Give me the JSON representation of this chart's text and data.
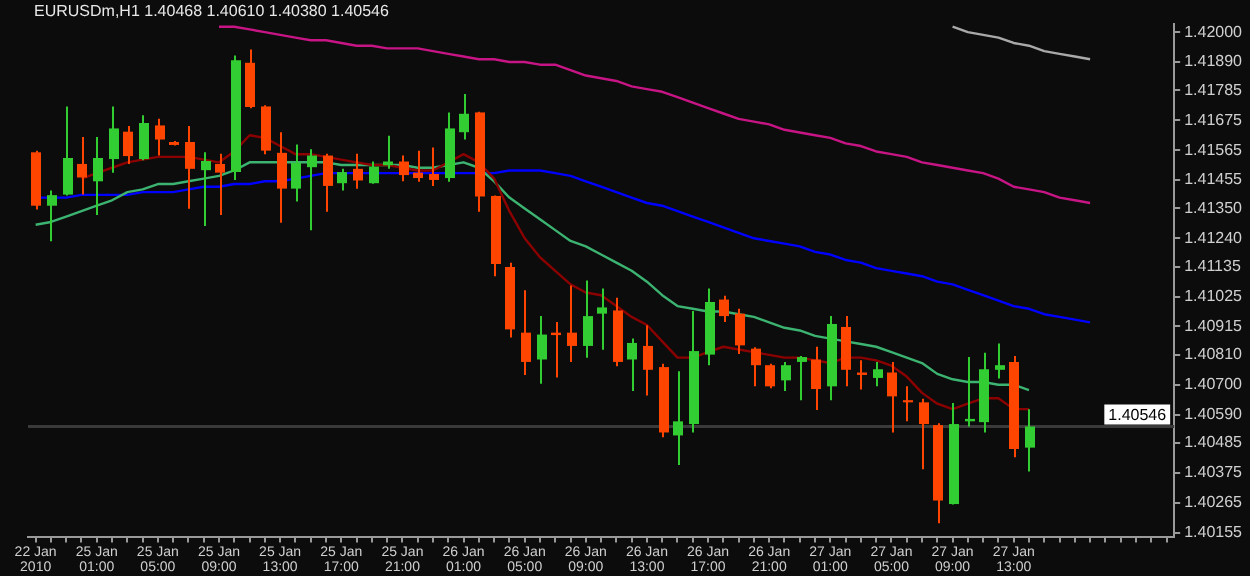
{
  "chart_data": {
    "type": "candlestick",
    "title": "EURUSDm,H1 1.40468 1.40610 1.40380 1.40546",
    "categories": [
      "22 Jan 2010",
      null,
      null,
      null,
      "25 Jan 01:00",
      null,
      null,
      null,
      "25 Jan 05:00",
      null,
      null,
      null,
      "25 Jan 09:00",
      null,
      null,
      null,
      "25 Jan 13:00",
      null,
      null,
      null,
      "25 Jan 17:00",
      null,
      null,
      null,
      "25 Jan 21:00",
      null,
      null,
      null,
      "26 Jan 01:00",
      null,
      null,
      null,
      "26 Jan 05:00",
      null,
      null,
      null,
      "26 Jan 09:00",
      null,
      null,
      null,
      "26 Jan 13:00",
      null,
      null,
      null,
      "26 Jan 17:00",
      null,
      null,
      null,
      "26 Jan 21:00",
      null,
      null,
      null,
      "27 Jan 01:00",
      null,
      null,
      null,
      "27 Jan 05:00",
      null,
      null,
      null,
      "27 Jan 09:00",
      null,
      null,
      null,
      "27 Jan 13:00",
      null,
      null,
      null,
      null,
      null,
      null,
      null,
      null,
      null,
      null
    ],
    "ohlc": [
      [
        1.41557,
        1.41563,
        1.41346,
        1.4136
      ],
      [
        1.4136,
        1.41416,
        1.41229,
        1.41399
      ],
      [
        1.41401,
        1.41726,
        1.41398,
        1.41536
      ],
      [
        1.41514,
        1.41613,
        1.41401,
        1.41464
      ],
      [
        1.4145,
        1.41613,
        1.41326,
        1.41536
      ],
      [
        1.41532,
        1.41726,
        1.41482,
        1.41645
      ],
      [
        1.41633,
        1.41654,
        1.41514,
        1.41543
      ],
      [
        1.41532,
        1.41694,
        1.41528,
        1.41665
      ],
      [
        1.41656,
        1.41681,
        1.41545,
        1.41604
      ],
      [
        1.41595,
        1.41599,
        1.41582,
        1.41584
      ],
      [
        1.41595,
        1.41654,
        1.41349,
        1.41496
      ],
      [
        1.41491,
        1.41557,
        1.41285,
        1.41525
      ],
      [
        1.41514,
        1.41552,
        1.41326,
        1.41482
      ],
      [
        1.41484,
        1.41914,
        1.41455,
        1.41896
      ],
      [
        1.41887,
        1.41936,
        1.41719,
        1.41724
      ],
      [
        1.41726,
        1.4173,
        1.4155,
        1.41563
      ],
      [
        1.41555,
        1.41631,
        1.41297,
        1.41423
      ],
      [
        1.41423,
        1.41586,
        1.41376,
        1.41518
      ],
      [
        1.41502,
        1.41568,
        1.4127,
        1.41545
      ],
      [
        1.41545,
        1.41552,
        1.41338,
        1.41433
      ],
      [
        1.41443,
        1.41496,
        1.41416,
        1.41484
      ],
      [
        1.41496,
        1.41552,
        1.41423,
        1.41453
      ],
      [
        1.41443,
        1.41523,
        1.41441,
        1.41504
      ],
      [
        1.41509,
        1.41618,
        1.41496,
        1.41523
      ],
      [
        1.41523,
        1.41545,
        1.4145,
        1.41473
      ],
      [
        1.41482,
        1.41563,
        1.41448,
        1.41462
      ],
      [
        1.41477,
        1.41575,
        1.41433,
        1.41455
      ],
      [
        1.41462,
        1.41704,
        1.41448,
        1.41645
      ],
      [
        1.41631,
        1.41772,
        1.41604,
        1.41699
      ],
      [
        1.41704,
        1.41706,
        1.41338,
        1.41394
      ],
      [
        1.41396,
        1.41398,
        1.411,
        1.41145
      ],
      [
        1.41134,
        1.4115,
        1.40874,
        1.40904
      ],
      [
        1.40892,
        1.41048,
        1.40736,
        1.40784
      ],
      [
        1.40793,
        1.40953,
        1.40704,
        1.40885
      ],
      [
        1.40892,
        1.40931,
        1.40727,
        1.40883
      ],
      [
        1.40892,
        1.41066,
        1.40784,
        1.40843
      ],
      [
        1.40843,
        1.41084,
        1.40799,
        1.40953
      ],
      [
        1.40962,
        1.41055,
        1.40829,
        1.40985
      ],
      [
        1.40974,
        1.41021,
        1.40768,
        1.40784
      ],
      [
        1.40793,
        1.4087,
        1.40677,
        1.40854
      ],
      [
        1.40843,
        1.40919,
        1.4066,
        1.40755
      ],
      [
        1.40765,
        1.40777,
        1.40506,
        1.40524
      ],
      [
        1.40513,
        1.4075,
        1.40404,
        1.40565
      ],
      [
        1.40555,
        1.40972,
        1.40524,
        1.40824
      ],
      [
        1.40811,
        1.41055,
        1.40772,
        1.41005
      ],
      [
        1.41014,
        1.41028,
        1.40931,
        1.40953
      ],
      [
        1.40962,
        1.4098,
        1.40813,
        1.40845
      ],
      [
        1.40833,
        1.40838,
        1.40694,
        1.40772
      ],
      [
        1.40772,
        1.40777,
        1.40687,
        1.40694
      ],
      [
        1.40716,
        1.40784,
        1.40677,
        1.40772
      ],
      [
        1.40784,
        1.40806,
        1.40643,
        1.40802
      ],
      [
        1.40793,
        1.4084,
        1.40607,
        1.40684
      ],
      [
        1.40694,
        1.40953,
        1.40643,
        1.40924
      ],
      [
        1.40913,
        1.40953,
        1.40694,
        1.40755
      ],
      [
        1.40745,
        1.4079,
        1.40682,
        1.40736
      ],
      [
        1.40725,
        1.40784,
        1.40694,
        1.40757
      ],
      [
        1.40745,
        1.40784,
        1.40524,
        1.40657
      ],
      [
        1.40643,
        1.40694,
        1.40565,
        1.40635
      ],
      [
        1.40635,
        1.40648,
        1.40388,
        1.40555
      ],
      [
        1.40551,
        1.40558,
        1.40189,
        1.40273
      ],
      [
        1.4026,
        1.40633,
        1.40258,
        1.40555
      ],
      [
        1.40565,
        1.40802,
        1.40546,
        1.40574
      ],
      [
        1.40562,
        1.40818,
        1.40524,
        1.40757
      ],
      [
        1.40755,
        1.40852,
        1.40723,
        1.40772
      ],
      [
        1.40784,
        1.40806,
        1.40433,
        1.40463
      ],
      [
        1.40468,
        1.4061,
        1.4038,
        1.40546
      ],
      null,
      null,
      null,
      null,
      null,
      null,
      null,
      null,
      null
    ],
    "colors": [
      "#ff4500",
      "#32cd32",
      "#32cd32",
      "#ff4500",
      "#32cd32",
      "#32cd32",
      "#ff4500",
      "#32cd32",
      "#ff4500",
      "#ff4500",
      "#ff4500",
      "#32cd32",
      "#ff4500",
      "#32cd32",
      "#ff4500",
      "#ff4500",
      "#ff4500",
      "#32cd32",
      "#32cd32",
      "#ff4500",
      "#32cd32",
      "#ff4500",
      "#32cd32",
      "#32cd32",
      "#ff4500",
      "#ff4500",
      "#ff4500",
      "#32cd32",
      "#32cd32",
      "#ff4500",
      "#ff4500",
      "#ff4500",
      "#ff4500",
      "#32cd32",
      "#ff4500",
      "#ff4500",
      "#32cd32",
      "#32cd32",
      "#ff4500",
      "#32cd32",
      "#ff4500",
      "#ff4500",
      "#32cd32",
      "#32cd32",
      "#32cd32",
      "#ff4500",
      "#ff4500",
      "#ff4500",
      "#ff4500",
      "#32cd32",
      "#32cd32",
      "#ff4500",
      "#32cd32",
      "#ff4500",
      "#ff4500",
      "#32cd32",
      "#ff4500",
      "#ff4500",
      "#ff4500",
      "#ff4500",
      "#32cd32",
      "#32cd32",
      "#32cd32",
      "#32cd32",
      "#ff4500",
      "#32cd32",
      null,
      null,
      null,
      null,
      null,
      null,
      null,
      null,
      null
    ],
    "series": [
      {
        "type": "line",
        "color": "#8b0000",
        "values": [
          null,
          null,
          null,
          1.4146,
          1.4148,
          1.415,
          1.4152,
          1.4153,
          1.4154,
          1.4154,
          1.4154,
          1.4153,
          1.4152,
          1.4156,
          1.4162,
          1.4161,
          1.4158,
          1.4155,
          1.4155,
          1.4154,
          1.4153,
          1.4152,
          1.4151,
          1.4151,
          1.415,
          1.4149,
          1.4149,
          1.4152,
          1.4155,
          1.4152,
          1.4146,
          1.4134,
          1.4124,
          1.4117,
          1.4112,
          1.4107,
          1.4104,
          1.4103,
          1.4099,
          1.4095,
          1.4092,
          1.4086,
          1.408,
          1.408,
          1.4082,
          1.4084,
          1.4083,
          1.4082,
          1.4081,
          1.408,
          1.408,
          1.4079,
          1.4078,
          1.408,
          1.408,
          1.4079,
          1.4077,
          1.4073,
          1.4067,
          1.4063,
          1.4061,
          1.4063,
          1.4065,
          1.4065,
          1.4061,
          1.4061,
          null,
          null,
          null,
          null,
          null,
          null,
          null,
          null,
          null
        ]
      },
      {
        "type": "line",
        "color": "#3cb371",
        "values": [
          1.4129,
          1.413,
          1.4132,
          1.4134,
          1.4136,
          1.4138,
          1.4141,
          1.4142,
          1.4144,
          1.4144,
          1.4145,
          1.4146,
          1.4147,
          1.4149,
          1.4152,
          1.4152,
          1.4152,
          1.4152,
          1.4152,
          1.4152,
          1.4151,
          1.4151,
          1.4151,
          1.4151,
          1.4151,
          1.415,
          1.415,
          1.4151,
          1.4152,
          1.415,
          1.4145,
          1.4139,
          1.4135,
          1.4131,
          1.4127,
          1.4123,
          1.4121,
          1.4118,
          1.4115,
          1.4112,
          1.4108,
          1.4103,
          1.4099,
          1.4098,
          1.4097,
          1.4097,
          1.4096,
          1.4095,
          1.4093,
          1.4091,
          1.409,
          1.4088,
          1.4087,
          1.4086,
          1.4085,
          1.4084,
          1.4082,
          1.408,
          1.4078,
          1.4074,
          1.4072,
          1.4071,
          1.4071,
          1.407,
          1.407,
          1.4068,
          null,
          null,
          null,
          null,
          null,
          null,
          null,
          null,
          null
        ]
      },
      {
        "type": "line",
        "color": "#0000ff",
        "values": [
          1.4139,
          1.4139,
          1.4139,
          1.414,
          1.414,
          1.414,
          1.414,
          1.4141,
          1.4141,
          1.4141,
          1.4142,
          1.4143,
          1.4143,
          1.4144,
          1.4144,
          1.4145,
          1.4145,
          1.4146,
          1.4147,
          1.4148,
          1.4148,
          1.4148,
          1.4148,
          1.4148,
          1.4148,
          1.4148,
          1.4148,
          1.4148,
          1.4148,
          1.4148,
          1.4148,
          1.4149,
          1.4149,
          1.4149,
          1.4148,
          1.4147,
          1.4145,
          1.4143,
          1.4141,
          1.4139,
          1.4137,
          1.4136,
          1.4134,
          1.4132,
          1.413,
          1.4128,
          1.4126,
          1.4124,
          1.4123,
          1.4122,
          1.4121,
          1.4119,
          1.4118,
          1.4116,
          1.4115,
          1.4113,
          1.4112,
          1.4111,
          1.411,
          1.4108,
          1.4107,
          1.4105,
          1.4103,
          1.4101,
          1.4099,
          1.4098,
          1.4096,
          1.4095,
          1.4094,
          1.4093,
          null,
          null,
          null,
          null,
          null
        ]
      },
      {
        "type": "line",
        "color": "#c71585",
        "values": [
          null,
          null,
          null,
          null,
          null,
          null,
          null,
          null,
          null,
          null,
          null,
          null,
          1.4202,
          1.4202,
          1.4201,
          1.42,
          1.4199,
          1.4198,
          1.4197,
          1.4197,
          1.4196,
          1.4195,
          1.4195,
          1.4194,
          1.4194,
          1.4194,
          1.4193,
          1.4192,
          1.4191,
          1.419,
          1.419,
          1.4189,
          1.4189,
          1.4188,
          1.4188,
          1.4186,
          1.4184,
          1.4183,
          1.4182,
          1.418,
          1.4179,
          1.4178,
          1.4176,
          1.4174,
          1.4172,
          1.417,
          1.4168,
          1.4167,
          1.4166,
          1.4164,
          1.4163,
          1.4162,
          1.4161,
          1.4159,
          1.4158,
          1.4156,
          1.4155,
          1.4154,
          1.4152,
          1.4151,
          1.415,
          1.4149,
          1.4148,
          1.4146,
          1.4143,
          1.4142,
          1.4141,
          1.4139,
          1.4138,
          1.4137,
          null,
          null,
          null,
          null,
          null
        ]
      },
      {
        "type": "line",
        "color": "#a9a9a9",
        "values": [
          null,
          null,
          null,
          null,
          null,
          null,
          null,
          null,
          null,
          null,
          null,
          null,
          null,
          null,
          null,
          null,
          null,
          null,
          null,
          null,
          null,
          null,
          null,
          null,
          null,
          null,
          null,
          null,
          null,
          null,
          null,
          null,
          null,
          null,
          null,
          null,
          null,
          null,
          null,
          null,
          null,
          null,
          null,
          null,
          null,
          null,
          null,
          null,
          null,
          null,
          null,
          null,
          null,
          null,
          null,
          null,
          null,
          null,
          null,
          null,
          1.4202,
          1.42,
          1.4199,
          1.4198,
          1.4196,
          1.4195,
          1.4193,
          1.4192,
          1.4191,
          1.419,
          null,
          null,
          null,
          null,
          null
        ]
      }
    ],
    "ylim": [
      1.4014,
      1.4203
    ],
    "yticks": [
      {
        "value": 1.42,
        "label": "1.42000"
      },
      {
        "value": 1.4189,
        "label": "1.41890"
      },
      {
        "value": 1.41785,
        "label": "1.41785"
      },
      {
        "value": 1.41675,
        "label": "1.41675"
      },
      {
        "value": 1.41565,
        "label": "1.41565"
      },
      {
        "value": 1.41455,
        "label": "1.41455"
      },
      {
        "value": 1.4135,
        "label": "1.41350"
      },
      {
        "value": 1.4124,
        "label": "1.41240"
      },
      {
        "value": 1.41135,
        "label": "1.41135"
      },
      {
        "value": 1.41025,
        "label": "1.41025"
      },
      {
        "value": 1.40915,
        "label": "1.40915"
      },
      {
        "value": 1.4081,
        "label": "1.40810"
      },
      {
        "value": 1.407,
        "label": "1.40700"
      },
      {
        "value": 1.4059,
        "label": "1.40590"
      },
      {
        "value": 1.40485,
        "label": "1.40485"
      },
      {
        "value": 1.40375,
        "label": "1.40375"
      },
      {
        "value": 1.40265,
        "label": "1.40265"
      },
      {
        "value": 1.40155,
        "label": "1.40155"
      }
    ],
    "ref_lines": [
      {
        "axis": "y",
        "value": 1.40546,
        "label": "1.40546",
        "color": "#3a3a3a"
      }
    ]
  }
}
